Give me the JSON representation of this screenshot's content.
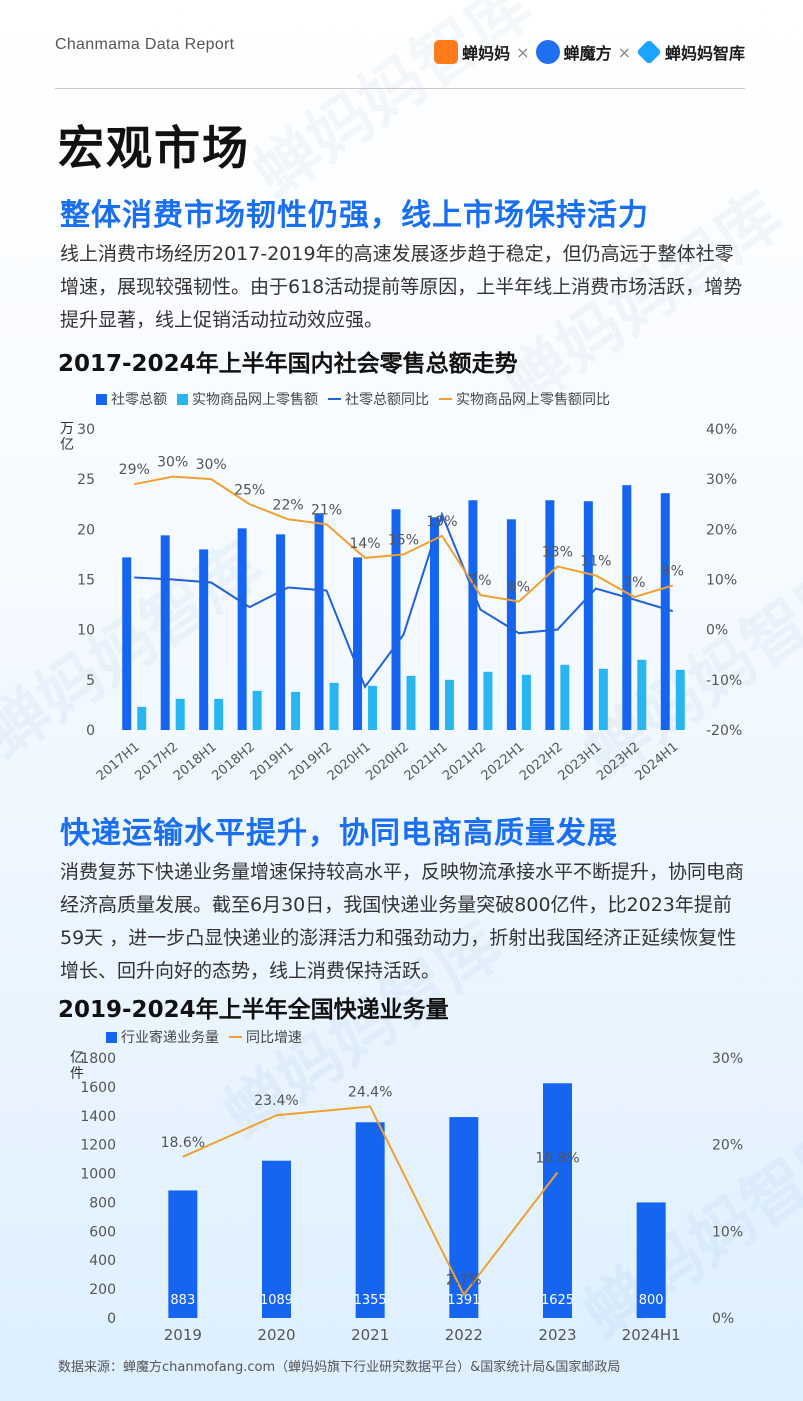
{
  "header": {
    "brand_text": "Chanmama Data Report",
    "logos": [
      {
        "name": "蝉妈妈",
        "color": "#ff7a1a"
      },
      {
        "name": "蝉魔方",
        "color": "#1f6ff2"
      },
      {
        "name": "蝉妈妈智库",
        "color": "#1aa3ff"
      }
    ],
    "separator": "×"
  },
  "page_title": "宏观市场",
  "section1": {
    "title": "整体消费市场韧性仍强，线上市场保持活力",
    "paragraph": "线上消费市场经历2017-2019年的高速发展逐步趋于稳定，但仍高远于整体社零增速，展现较强韧性。由于618活动提前等原因，上半年线上消费市场活跃，增势提升显著，线上促销活动拉动效应强。"
  },
  "section2": {
    "title": "快递运输水平提升，协同电商高质量发展",
    "paragraph": "消费复苏下快递业务量增速保持较高水平，反映物流承接水平不断提升，协同电商经济高质量发展。截至6月30日，我国快递业务量突破800亿件，比2023年提前59天 ，进一步凸显快递业的澎湃活力和强劲动力，折射出我国经济正延续恢复性增长、回升向好的态势，线上消费保持活跃。"
  },
  "source": "数据来源：蝉魔方chanmofang.com（蝉妈妈旗下行业研究数据平台）&国家统计局&国家邮政局",
  "watermark": "蝉妈妈智库",
  "chart_data": [
    {
      "type": "bar",
      "title": "2017-2024年上半年国内社会零售总额走势",
      "categories": [
        "2017H1",
        "2017H2",
        "2018H1",
        "2018H2",
        "2019H1",
        "2019H2",
        "2020H1",
        "2020H2",
        "2021H1",
        "2021H2",
        "2022H1",
        "2022H2",
        "2023H1",
        "2023H2",
        "2024H1"
      ],
      "ylabel_left": "万亿",
      "ylim_left": [
        0,
        30
      ],
      "yticks_left": [
        "0",
        "5",
        "10",
        "15",
        "20",
        "25",
        "30"
      ],
      "ylim_right": [
        -20,
        40
      ],
      "yticks_right": [
        "-20%",
        "-10%",
        "0%",
        "10%",
        "20%",
        "30%",
        "40%"
      ],
      "series": [
        {
          "name": "社零总额",
          "kind": "bar",
          "axis": "left",
          "color": "#1565f0",
          "values": [
            17.2,
            19.4,
            18.0,
            20.1,
            19.5,
            21.6,
            17.2,
            22.0,
            21.2,
            22.9,
            21.0,
            22.9,
            22.8,
            24.4,
            23.6
          ]
        },
        {
          "name": "实物商品网上零售额",
          "kind": "bar",
          "axis": "left",
          "color": "#29b6f0",
          "values": [
            2.3,
            3.1,
            3.1,
            3.9,
            3.8,
            4.7,
            4.4,
            5.4,
            5.0,
            5.8,
            5.5,
            6.5,
            6.1,
            7.0,
            6.0
          ]
        },
        {
          "name": "社零总额同比",
          "kind": "line",
          "axis": "right",
          "color": "#2060d8",
          "values": [
            10.4,
            10.0,
            9.4,
            4.5,
            8.4,
            7.8,
            -11.4,
            -1.0,
            23.0,
            4.0,
            -0.7,
            0.0,
            8.2,
            6.0,
            3.7
          ]
        },
        {
          "name": "实物商品网上零售额同比",
          "kind": "line",
          "axis": "right",
          "color": "#f0a030",
          "values": [
            29,
            30.5,
            30,
            25,
            22,
            21,
            14.3,
            15,
            18.7,
            6.9,
            5.6,
            12.6,
            10.8,
            6.5,
            8.8
          ],
          "labels": [
            "29%",
            "30%",
            "30%",
            "25%",
            "22%",
            "21%",
            "14%",
            "15%",
            "19%",
            "7%",
            "6%",
            "13%",
            "11%",
            "7%",
            "9%"
          ]
        }
      ]
    },
    {
      "type": "bar",
      "title": "2019-2024年上半年全国快递业务量",
      "categories": [
        "2019",
        "2020",
        "2021",
        "2022",
        "2023",
        "2024H1"
      ],
      "ylabel_left": "亿件",
      "ylim_left": [
        0,
        1800
      ],
      "yticks_left": [
        "0",
        "200",
        "400",
        "600",
        "800",
        "1000",
        "1200",
        "1400",
        "1600",
        "1800"
      ],
      "ylim_right": [
        0,
        30
      ],
      "yticks_right": [
        "0%",
        "10%",
        "20%",
        "30%"
      ],
      "series": [
        {
          "name": "行业寄递业务量",
          "kind": "bar",
          "axis": "left",
          "color": "#1565f0",
          "values": [
            883,
            1089,
            1355,
            1391,
            1625,
            800
          ],
          "labels": [
            "883",
            "1089",
            "1355",
            "1391",
            "1625",
            "800"
          ]
        },
        {
          "name": "同比增速",
          "kind": "line",
          "axis": "right",
          "color": "#f0a030",
          "values": [
            18.6,
            23.4,
            24.4,
            2.7,
            16.8,
            null
          ],
          "labels": [
            "18.6%",
            "23.4%",
            "24.4%",
            "2.7%",
            "16.8%",
            ""
          ]
        }
      ]
    }
  ]
}
